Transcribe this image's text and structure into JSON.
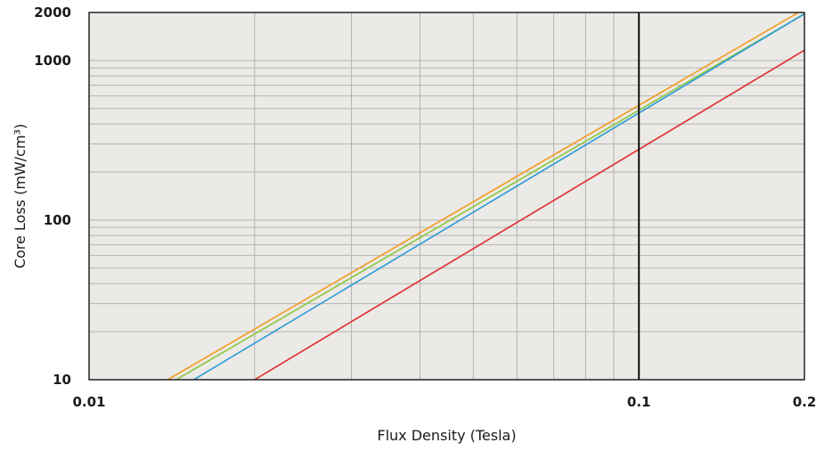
{
  "chart_data": {
    "type": "line",
    "xlabel": "Flux Density (Tesla)",
    "ylabel": "Core Loss (mW/cm³)",
    "x_scale": "log",
    "y_scale": "log",
    "xlim": [
      0.01,
      0.2
    ],
    "ylim": [
      10,
      2000
    ],
    "x_ticks": [
      {
        "value": 0.01,
        "label": "0.01"
      },
      {
        "value": 0.1,
        "label": "0.1"
      },
      {
        "value": 0.2,
        "label": "0.2"
      }
    ],
    "y_ticks": [
      {
        "value": 10,
        "label": "10"
      },
      {
        "value": 100,
        "label": "100"
      },
      {
        "value": 1000,
        "label": "1000"
      },
      {
        "value": 2000,
        "label": "2000"
      }
    ],
    "grid": true,
    "plot_background": "#ebeae6",
    "grid_color": "#b4b4b4",
    "series": [
      {
        "color": "#f39a1e",
        "points": [
          [
            0.0139,
            10
          ],
          [
            0.195,
            2000
          ]
        ]
      },
      {
        "color": "#8dc63f",
        "points": [
          [
            0.0144,
            10
          ],
          [
            0.2,
            1960
          ]
        ]
      },
      {
        "color": "#2b9ad6",
        "points": [
          [
            0.0155,
            10
          ],
          [
            0.2,
            1960
          ]
        ]
      },
      {
        "color": "#e02b2b",
        "points": [
          [
            0.02,
            10
          ],
          [
            0.2,
            1160
          ]
        ]
      }
    ]
  }
}
